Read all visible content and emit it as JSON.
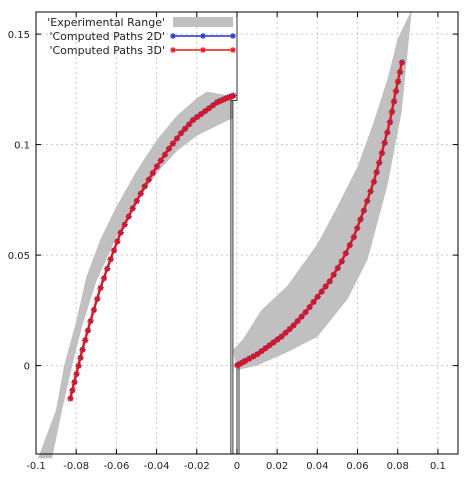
{
  "chart_data": {
    "type": "scatter",
    "title": "",
    "xlabel": "",
    "ylabel": "",
    "xlim": [
      -0.1,
      0.11
    ],
    "ylim": [
      -0.04,
      0.16
    ],
    "grid": true,
    "legend_position": "top-left",
    "x_ticks": [
      -0.1,
      -0.08,
      -0.06,
      -0.04,
      -0.02,
      0,
      0.02,
      0.04,
      0.06,
      0.08,
      0.1
    ],
    "x_tick_labels": [
      "-0.1",
      "-0.08",
      "-0.06",
      "-0.04",
      "-0.02",
      "0",
      "0.02",
      "0.04",
      "0.06",
      "0.08",
      "0.1"
    ],
    "y_ticks": [
      0,
      0.05,
      0.1,
      0.15
    ],
    "y_tick_labels": [
      "0",
      "0.05",
      "0.1",
      "0.15"
    ],
    "legend": [
      {
        "label": "'Experimental Range'",
        "color": "#c0c0c0",
        "style": "band"
      },
      {
        "label": "'Computed Paths 2D'",
        "color": "#1f2fd0",
        "style": "line-star"
      },
      {
        "label": "'Computed Paths 3D'",
        "color": "#ee1111",
        "style": "line-star"
      }
    ],
    "series": [
      {
        "name": "'Experimental Range'",
        "type": "band",
        "color": "#c0c0c0",
        "bands": [
          {
            "upper": [
              [
                -0.099,
                -0.042
              ],
              [
                -0.09,
                -0.02
              ],
              [
                -0.086,
                0.0
              ],
              [
                -0.08,
                0.02
              ],
              [
                -0.075,
                0.04
              ],
              [
                -0.068,
                0.057
              ],
              [
                -0.06,
                0.072
              ],
              [
                -0.05,
                0.088
              ],
              [
                -0.04,
                0.102
              ],
              [
                -0.03,
                0.113
              ],
              [
                -0.02,
                0.121
              ],
              [
                -0.015,
                0.124
              ],
              [
                -0.009,
                0.123
              ],
              [
                -0.002,
                0.122
              ]
            ],
            "lower": [
              [
                -0.002,
                0.112
              ],
              [
                -0.009,
                0.109
              ],
              [
                -0.02,
                0.104
              ],
              [
                -0.03,
                0.097
              ],
              [
                -0.04,
                0.087
              ],
              [
                -0.05,
                0.074
              ],
              [
                -0.06,
                0.058
              ],
              [
                -0.07,
                0.038
              ],
              [
                -0.077,
                0.018
              ],
              [
                -0.082,
                0.0
              ],
              [
                -0.087,
                -0.02
              ],
              [
                -0.092,
                -0.042
              ]
            ]
          },
          {
            "upper": [
              [
                -0.002,
                0.007
              ],
              [
                0.003,
                0.012
              ],
              [
                0.012,
                0.025
              ],
              [
                0.025,
                0.036
              ],
              [
                0.04,
                0.055
              ],
              [
                0.05,
                0.072
              ],
              [
                0.06,
                0.09
              ],
              [
                0.068,
                0.11
              ],
              [
                0.075,
                0.13
              ],
              [
                0.08,
                0.148
              ],
              [
                0.087,
                0.161
              ]
            ],
            "lower": [
              [
                0.082,
                0.115
              ],
              [
                0.075,
                0.082
              ],
              [
                0.065,
                0.048
              ],
              [
                0.055,
                0.03
              ],
              [
                0.04,
                0.013
              ],
              [
                0.025,
                0.006
              ],
              [
                0.01,
                0.0
              ],
              [
                0.0,
                -0.002
              ]
            ]
          }
        ]
      },
      {
        "name": "'Computed Paths 2D'",
        "type": "line-star",
        "color": "#1f2fd0",
        "paths": [
          [
            [
              -0.083,
              -0.015
            ],
            [
              -0.08,
              -0.004
            ],
            [
              -0.077,
              0.007
            ],
            [
              -0.073,
              0.02
            ],
            [
              -0.068,
              0.035
            ],
            [
              -0.063,
              0.048
            ],
            [
              -0.058,
              0.06
            ],
            [
              -0.052,
              0.071
            ],
            [
              -0.046,
              0.081
            ],
            [
              -0.04,
              0.09
            ],
            [
              -0.034,
              0.098
            ],
            [
              -0.028,
              0.105
            ],
            [
              -0.022,
              0.111
            ],
            [
              -0.016,
              0.115
            ],
            [
              -0.01,
              0.119
            ],
            [
              -0.005,
              0.121
            ],
            [
              -0.002,
              0.122
            ]
          ],
          [
            [
              0.0,
              0.0
            ],
            [
              0.004,
              0.002
            ],
            [
              0.01,
              0.005
            ],
            [
              0.016,
              0.009
            ],
            [
              0.022,
              0.013
            ],
            [
              0.028,
              0.018
            ],
            [
              0.034,
              0.024
            ],
            [
              0.04,
              0.031
            ],
            [
              0.046,
              0.038
            ],
            [
              0.052,
              0.047
            ],
            [
              0.058,
              0.058
            ],
            [
              0.063,
              0.07
            ],
            [
              0.068,
              0.083
            ],
            [
              0.072,
              0.096
            ],
            [
              0.076,
              0.11
            ],
            [
              0.079,
              0.124
            ],
            [
              0.082,
              0.137
            ]
          ]
        ]
      },
      {
        "name": "'Computed Paths 3D'",
        "type": "line-star",
        "color": "#ee1111",
        "paths": [
          [
            [
              -0.083,
              -0.015
            ],
            [
              -0.08,
              -0.004
            ],
            [
              -0.077,
              0.007
            ],
            [
              -0.073,
              0.02
            ],
            [
              -0.068,
              0.035
            ],
            [
              -0.063,
              0.048
            ],
            [
              -0.058,
              0.06
            ],
            [
              -0.052,
              0.071
            ],
            [
              -0.046,
              0.081
            ],
            [
              -0.04,
              0.09
            ],
            [
              -0.034,
              0.098
            ],
            [
              -0.028,
              0.105
            ],
            [
              -0.022,
              0.111
            ],
            [
              -0.016,
              0.115
            ],
            [
              -0.01,
              0.119
            ],
            [
              -0.005,
              0.121
            ],
            [
              -0.002,
              0.122
            ]
          ],
          [
            [
              0.0,
              0.0
            ],
            [
              0.004,
              0.002
            ],
            [
              0.01,
              0.005
            ],
            [
              0.016,
              0.009
            ],
            [
              0.022,
              0.013
            ],
            [
              0.028,
              0.018
            ],
            [
              0.034,
              0.024
            ],
            [
              0.04,
              0.031
            ],
            [
              0.046,
              0.038
            ],
            [
              0.052,
              0.047
            ],
            [
              0.058,
              0.058
            ],
            [
              0.063,
              0.07
            ],
            [
              0.068,
              0.083
            ],
            [
              0.072,
              0.096
            ],
            [
              0.076,
              0.11
            ],
            [
              0.079,
              0.124
            ],
            [
              0.082,
              0.137
            ]
          ]
        ]
      },
      {
        "name": "",
        "type": "outline",
        "color": "#333333",
        "paths": [
          [
            [
              -0.003,
              -0.04
            ],
            [
              -0.003,
              0.12
            ],
            [
              0.0,
              0.12
            ],
            [
              0.0,
              0.16
            ]
          ],
          [
            [
              -0.002,
              -0.04
            ],
            [
              -0.002,
              0.12
            ]
          ],
          [
            [
              0.0,
              -0.04
            ],
            [
              0.0,
              0.0
            ]
          ],
          [
            [
              0.001,
              -0.04
            ],
            [
              0.001,
              0.0
            ]
          ]
        ]
      }
    ]
  }
}
